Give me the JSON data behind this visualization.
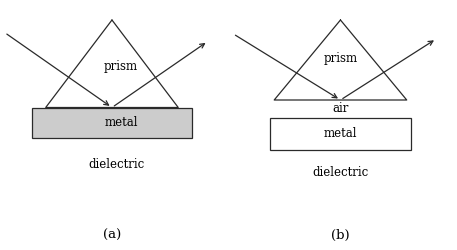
{
  "fig_width": 4.57,
  "fig_height": 2.5,
  "dpi": 100,
  "background_color": "#ffffff",
  "label_a": "(a)",
  "label_b": "(b)",
  "diagram_a": {
    "prism_label": "prism",
    "metal_label": "metal",
    "dielectric_label": "dielectric"
  },
  "diagram_b": {
    "prism_label": "prism",
    "air_label": "air",
    "metal_label": "metal",
    "dielectric_label": "dielectric"
  },
  "line_color": "#2a2a2a",
  "text_color": "#000000",
  "font_size": 8.5,
  "label_font_size": 9.5
}
